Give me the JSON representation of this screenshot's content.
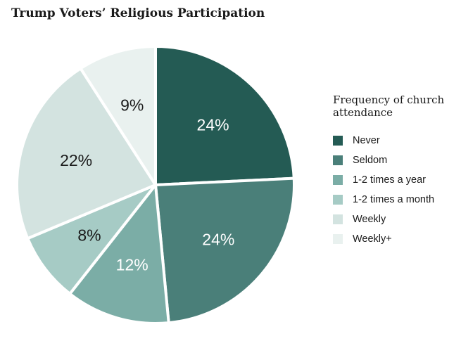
{
  "chart_data": {
    "type": "pie",
    "title": "Trump Voters’ Religious Participation",
    "legend_title": "Frequency of church attendance",
    "legend_position": "right",
    "slices": [
      {
        "name": "Never",
        "value": 24,
        "label": "24%",
        "color": "#245b54",
        "label_color": "#ffffff"
      },
      {
        "name": "Seldom",
        "value": 24,
        "label": "24%",
        "color": "#4a7f79",
        "label_color": "#ffffff"
      },
      {
        "name": "1-2 times a year",
        "value": 12,
        "label": "12%",
        "color": "#7bada6",
        "label_color": "#ffffff"
      },
      {
        "name": "1-2 times a month",
        "value": 8,
        "label": "8%",
        "color": "#a6cbc5",
        "label_color": "#1a1a1a"
      },
      {
        "name": "Weekly",
        "value": 22,
        "label": "22%",
        "color": "#d3e3e0",
        "label_color": "#1a1a1a"
      },
      {
        "name": "Weekly+",
        "value": 9,
        "label": "9%",
        "color": "#e9f1ef",
        "label_color": "#1a1a1a"
      }
    ]
  }
}
